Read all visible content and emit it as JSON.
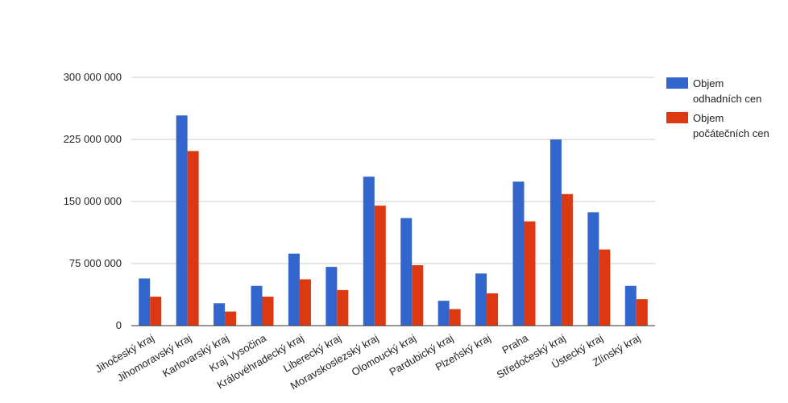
{
  "chart_data": {
    "type": "bar",
    "categories": [
      "Jihočeský kraj",
      "Jihomoravský kraj",
      "Karlovarský kraj",
      "Kraj Vysočina",
      "Královéhradecký kraj",
      "Liberecký kraj",
      "Moravskoslezský kraj",
      "Olomoucký kraj",
      "Pardubický kraj",
      "Plzeňský kraj",
      "Praha",
      "Středočeský kraj",
      "Ústecký kraj",
      "Zlínský kraj"
    ],
    "series": [
      {
        "name_lines": [
          "Objem",
          "odhadních cen"
        ],
        "color": "#3366cc",
        "values": [
          57000000,
          254000000,
          27000000,
          48000000,
          87000000,
          71000000,
          180000000,
          130000000,
          30000000,
          63000000,
          174000000,
          225000000,
          137000000,
          48000000
        ]
      },
      {
        "name_lines": [
          "Objem",
          "počátečních cen"
        ],
        "color": "#dc3912",
        "values": [
          35000000,
          211000000,
          17000000,
          35000000,
          56000000,
          43000000,
          145000000,
          73000000,
          20000000,
          39000000,
          126000000,
          159000000,
          92000000,
          32000000
        ]
      }
    ],
    "yticks": [
      "0",
      "75 000 000",
      "150 000 000",
      "225 000 000",
      "300 000 000"
    ],
    "ytick_values": [
      0,
      75000000,
      150000000,
      225000000,
      300000000
    ],
    "ylim": [
      0,
      300000000
    ],
    "grid": true,
    "legend_position": "right",
    "xlabel_rotation": "diagonal"
  }
}
